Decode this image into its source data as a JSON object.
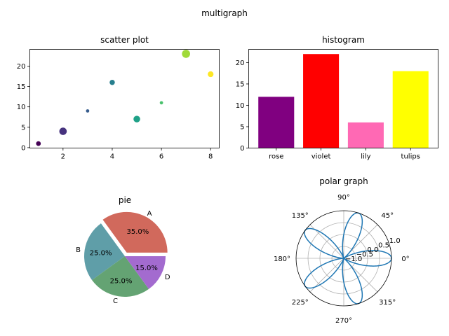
{
  "suptitle": "multigraph",
  "chart_data": [
    {
      "type": "scatter",
      "title": "scatter plot",
      "x": [
        1,
        2,
        3,
        4,
        5,
        6,
        7,
        8
      ],
      "y": [
        1,
        4,
        9,
        16,
        7,
        11,
        23,
        18
      ],
      "sizes": [
        20,
        50,
        10,
        25,
        40,
        10,
        60,
        30
      ],
      "colors": [
        "#440154",
        "#46327e",
        "#365c8d",
        "#277f8e",
        "#1fa187",
        "#4ac16d",
        "#a0da39",
        "#fde725"
      ],
      "xlim": [
        0.65,
        8.35
      ],
      "ylim": [
        -0.1,
        24.1
      ],
      "xticks": [
        2,
        4,
        6,
        8
      ],
      "yticks": [
        0,
        5,
        10,
        15,
        20
      ],
      "xlabel": "",
      "ylabel": ""
    },
    {
      "type": "bar",
      "title": "histogram",
      "categories": [
        "rose",
        "violet",
        "lily",
        "tulips"
      ],
      "values": [
        12,
        22,
        6,
        18
      ],
      "colors": [
        "#800080",
        "#ff0000",
        "#ff69b4",
        "#ffff00"
      ],
      "ylim": [
        0,
        23.1
      ],
      "yticks": [
        0,
        5,
        10,
        15,
        20
      ],
      "xlabel": "",
      "ylabel": ""
    },
    {
      "type": "pie",
      "title": "pie",
      "labels": [
        "A",
        "B",
        "C",
        "D"
      ],
      "values": [
        35,
        25,
        25,
        15
      ],
      "percent_labels": [
        "35.0%",
        "25.0%",
        "25.0%",
        "15.0%"
      ],
      "colors": [
        "#d1695c",
        "#5f9ea8",
        "#64a373",
        "#a36bcf"
      ],
      "explode": [
        0.1,
        0,
        0,
        0
      ],
      "startangle": 0
    },
    {
      "type": "polar",
      "title": "polar graph",
      "function": "r = cos(5 * theta)",
      "theta_tick_labels": [
        "0°",
        "45°",
        "90°",
        "135°",
        "180°",
        "225°",
        "270°",
        "315°"
      ],
      "r_tick_labels": [
        "−1.0",
        "−0.5",
        "0.0",
        "0.5",
        "1.0"
      ],
      "rlim": [
        -1.0,
        1.0
      ],
      "line_color": "#1f77b4"
    }
  ]
}
